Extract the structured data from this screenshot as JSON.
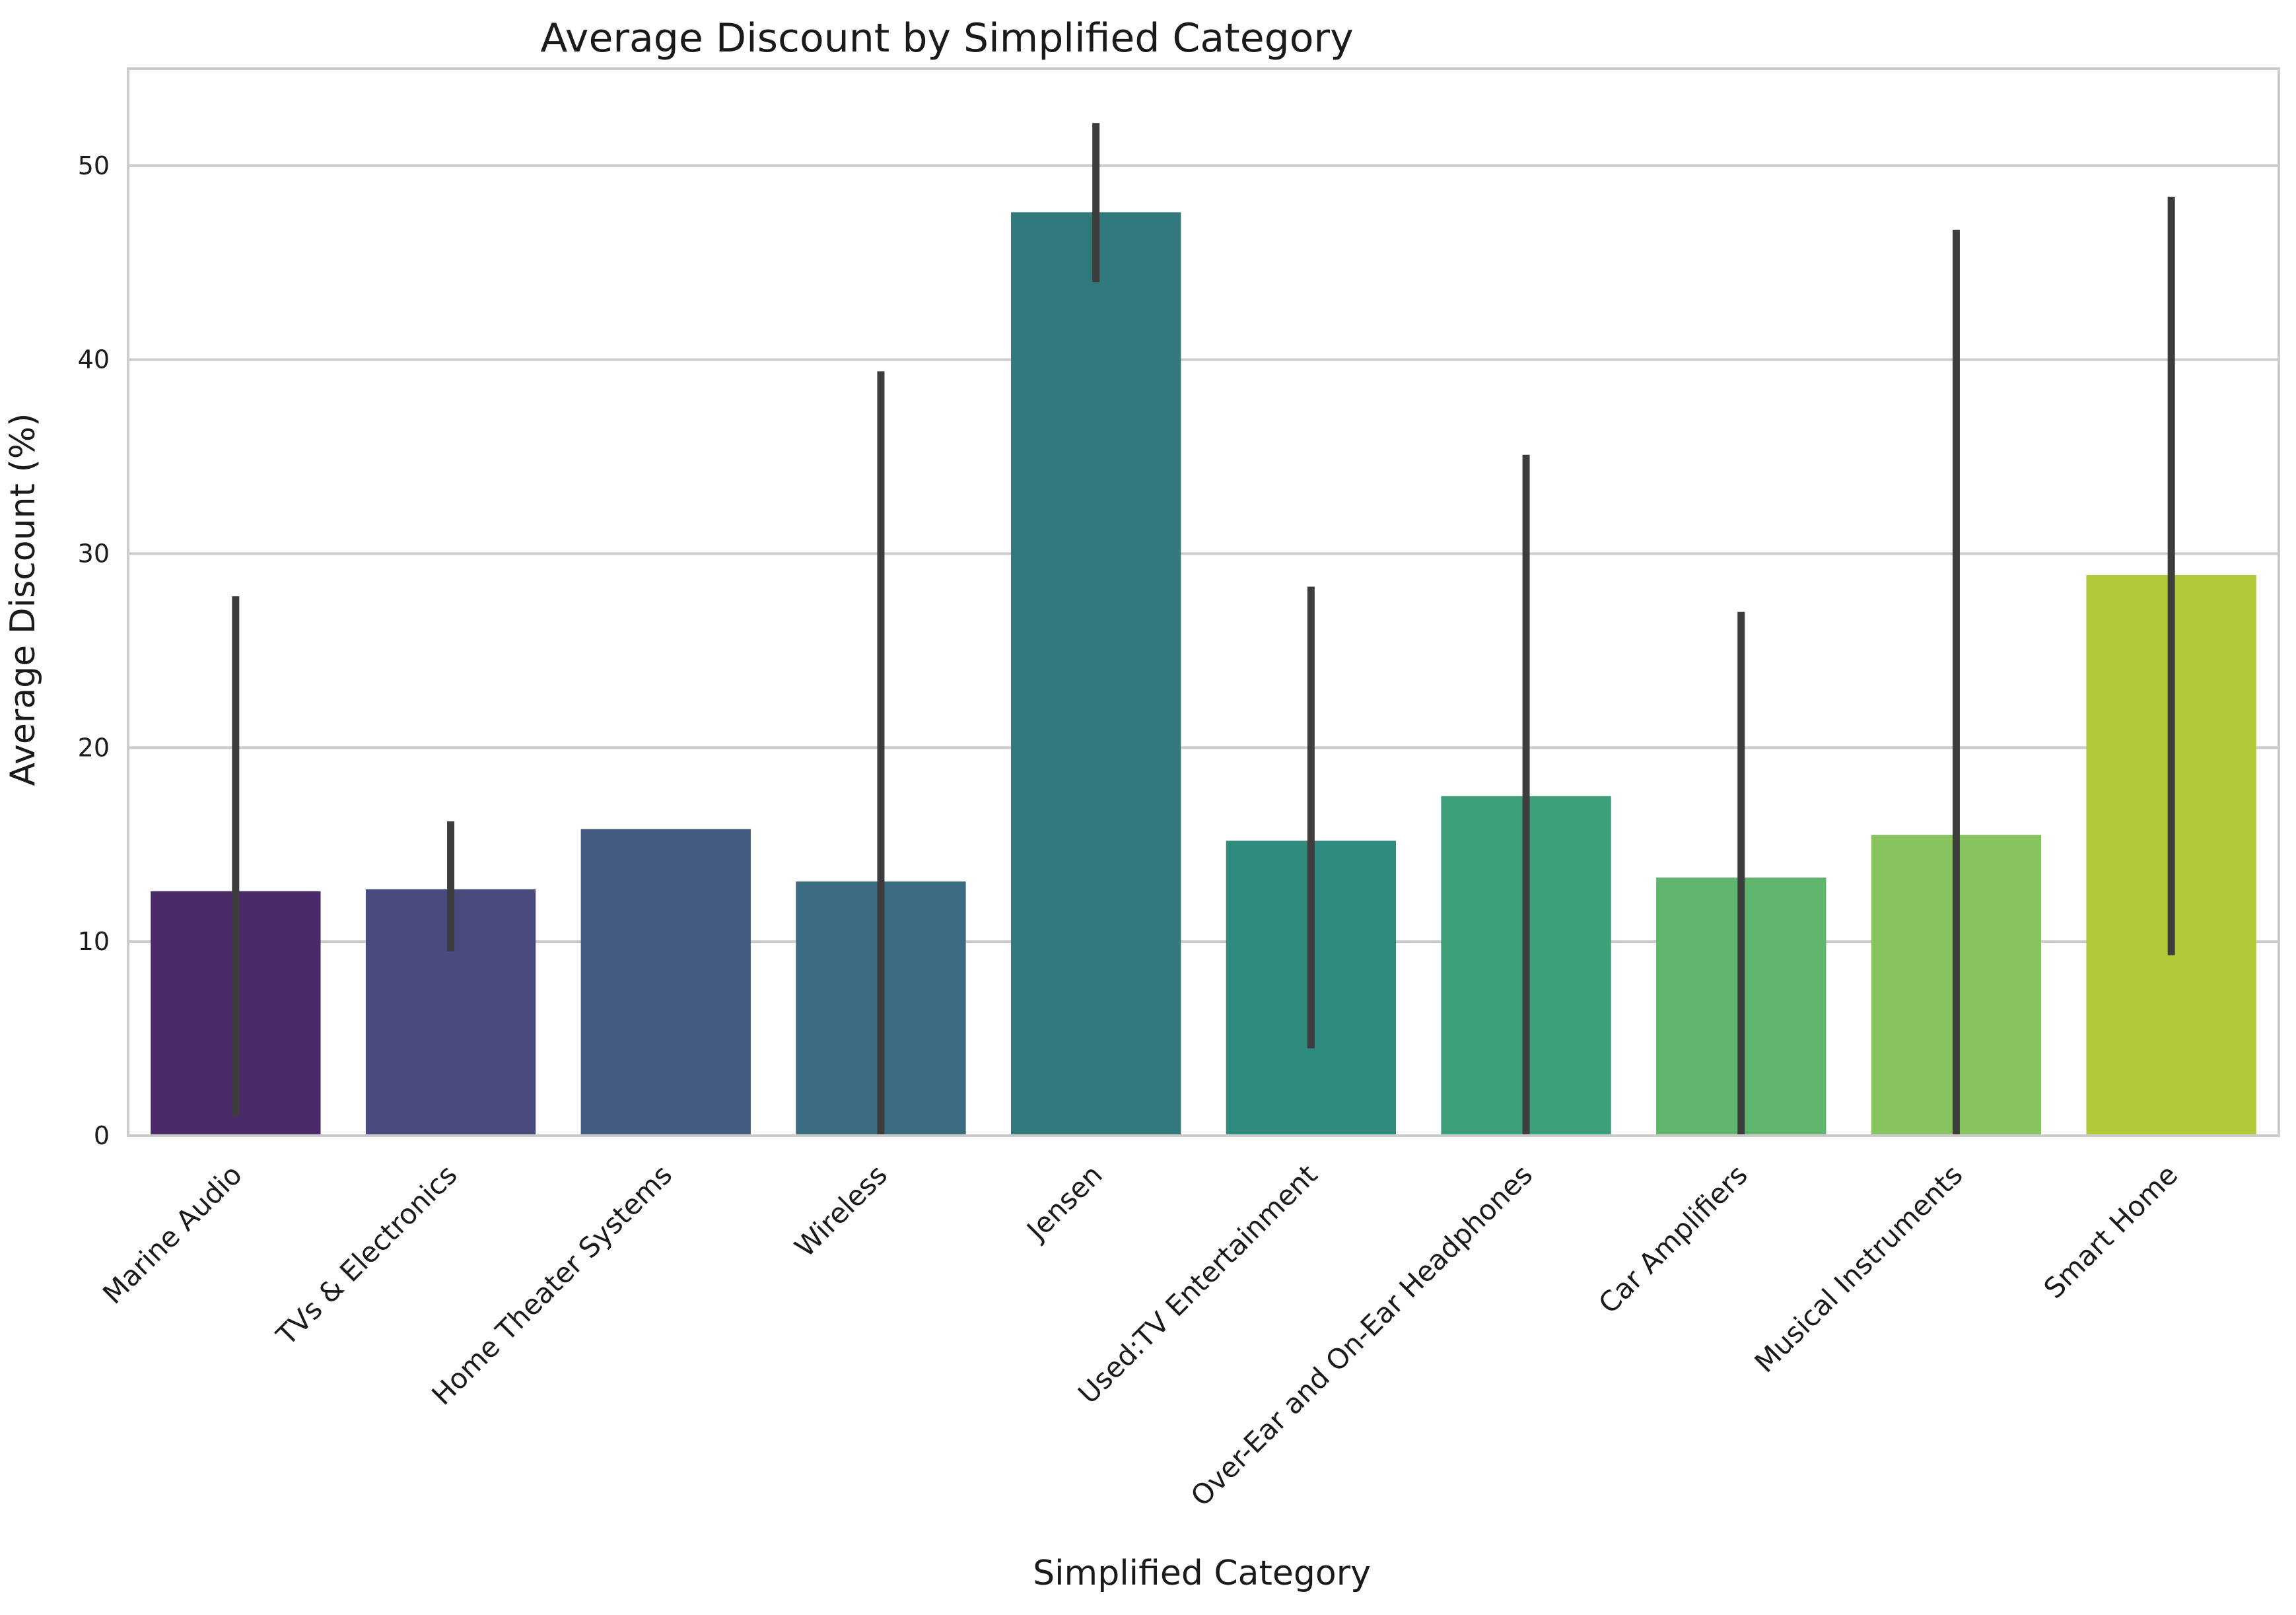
{
  "chart_data": {
    "type": "bar",
    "title": "Average Discount by Simplified Category",
    "xlabel": "Simplified Category",
    "ylabel": "Average Discount (%)",
    "ylim": [
      0,
      55
    ],
    "yticks": [
      0,
      10,
      20,
      30,
      40,
      50
    ],
    "grid": true,
    "categories": [
      "Marine Audio",
      "TVs & Electronics",
      "Home Theater Systems",
      "Wireless",
      "Jensen",
      "Used:TV Entertainment",
      "Over-Ear and On-Ear Headphones",
      "Car Amplifiers",
      "Musical Instruments",
      "Smart Home"
    ],
    "values": [
      12.6,
      12.7,
      15.8,
      13.1,
      47.6,
      15.2,
      17.5,
      13.3,
      15.5,
      28.9
    ],
    "error_low": [
      1.0,
      9.5,
      null,
      0.0,
      44.0,
      4.5,
      0.0,
      0.0,
      0.0,
      9.3
    ],
    "error_high": [
      27.8,
      16.2,
      null,
      39.4,
      52.2,
      28.3,
      35.1,
      27.0,
      46.7,
      48.4
    ],
    "colors": [
      "#4a2a67",
      "#4a4a7c",
      "#445b82",
      "#3a6b80",
      "#307a7e",
      "#2f8b7e",
      "#3d9f79",
      "#5fb46e",
      "#87c35e",
      "#b0c93a"
    ],
    "error_color": "#3d3d3d"
  }
}
